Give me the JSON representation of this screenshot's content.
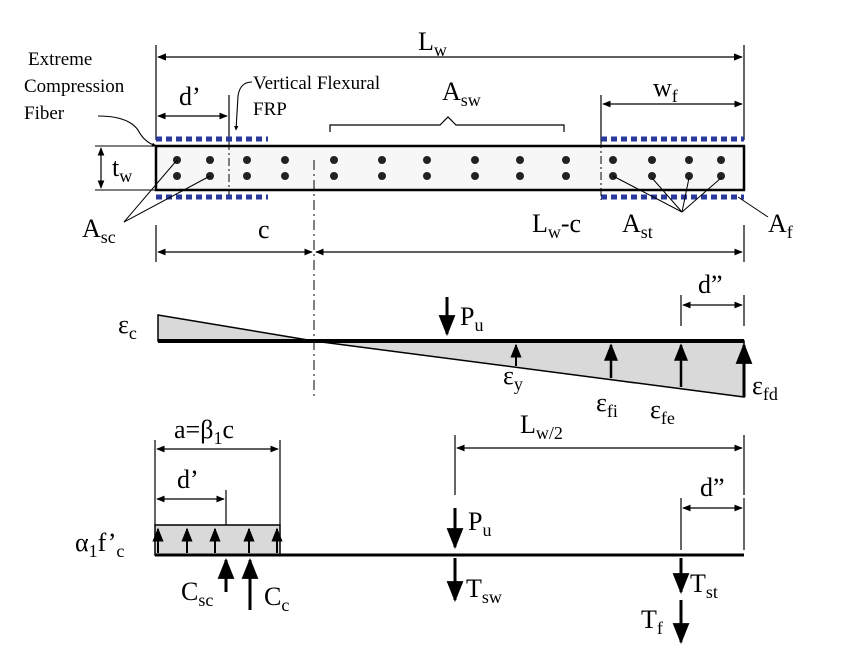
{
  "labels": {
    "extreme_fiber": [
      "Extreme",
      "Compression",
      "Fiber"
    ],
    "vertical_frp": [
      "Vertical Flexural",
      "FRP"
    ],
    "Lw": {
      "main": "L",
      "sub": "w"
    },
    "d_prime": "d’",
    "Asw": {
      "main": "A",
      "sub": "sw"
    },
    "wf": {
      "main": "w",
      "sub": "f"
    },
    "tw": {
      "main": "t",
      "sub": "w"
    },
    "Asc": {
      "main": "A",
      "sub": "sc"
    },
    "c": "c",
    "Lw_minus_c": {
      "main": "L",
      "sub": "w",
      "tail": "-c"
    },
    "Ast": {
      "main": "A",
      "sub": "st"
    },
    "Af": {
      "main": "A",
      "sub": "f"
    },
    "d_dprime": "d”",
    "eps_c": {
      "main": "ε",
      "sub": "c"
    },
    "Pu": {
      "main": "P",
      "sub": "u"
    },
    "eps_y": {
      "main": "ε",
      "sub": "y"
    },
    "eps_fi": {
      "main": "ε",
      "sub": "fi"
    },
    "eps_fe": {
      "main": "ε",
      "sub": "fe"
    },
    "eps_fd": {
      "main": "ε",
      "sub": "fd"
    },
    "a_beta": {
      "pre": "a=β",
      "sub": "1",
      "post": "c"
    },
    "Lw_half": {
      "main": "L",
      "sub": "w/2"
    },
    "alpha_fc": {
      "pre": "α",
      "sub": "1",
      "mid": "f’",
      "sub2": "c"
    },
    "Csc": {
      "main": "C",
      "sub": "sc"
    },
    "Cc": {
      "main": "C",
      "sub": "c"
    },
    "Tsw": {
      "main": "T",
      "sub": "sw"
    },
    "Tst": {
      "main": "T",
      "sub": "st"
    },
    "Tf": {
      "main": "T",
      "sub": "f"
    }
  },
  "colors": {
    "frp": "#2a3a9c",
    "wall_fill": "#f7f7f7",
    "strain_fill": "#d9d9d9",
    "line": "#000000"
  }
}
